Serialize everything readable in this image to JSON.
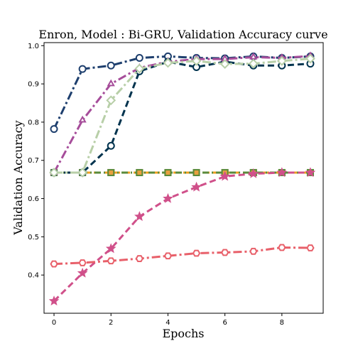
{
  "chart_data": {
    "type": "line",
    "title": "Enron, Model : Bi-GRU, Validation Accuracy curve",
    "xlabel": "Epochs",
    "ylabel": "Validation Accuracy",
    "xlim": [
      -0.35,
      9.45
    ],
    "ylim": [
      0.3,
      1.008
    ],
    "xticks": [
      0,
      2,
      4,
      6,
      8
    ],
    "yticks": [
      0.4,
      0.5,
      0.6,
      0.7,
      0.8,
      0.9,
      1.0
    ],
    "grid": false,
    "x": [
      0,
      1,
      2,
      3,
      4,
      5,
      6,
      7,
      8,
      9
    ],
    "series": [
      {
        "color": "#f0a020",
        "dash": "9,5",
        "marker": "square",
        "markerFill": "#f0a020",
        "markerStroke": "#8a6a20",
        "values": [
          0.668,
          0.668,
          0.668,
          0.668,
          0.668,
          0.668,
          0.668,
          0.668,
          0.668,
          0.668
        ]
      },
      {
        "color": "#5a8a3a",
        "dash": "9,4,2,4",
        "marker": "square",
        "markerFill": "#e8a040",
        "markerStroke": "#5a8a3a",
        "values": [
          0.668,
          0.668,
          0.668,
          0.668,
          0.668,
          0.668,
          0.668,
          0.668,
          0.668,
          0.668
        ]
      },
      {
        "color": "#1e3f6e",
        "dash": "12,4,3,4",
        "marker": "circle",
        "markerFill": "#ffffff",
        "markerStroke": "#1e3f6e",
        "values": [
          0.782,
          0.939,
          0.948,
          0.968,
          0.972,
          0.968,
          0.967,
          0.972,
          0.968,
          0.972
        ]
      },
      {
        "color": "#00334e",
        "dash": "9,5",
        "marker": "circle",
        "markerFill": "#ffffff",
        "markerStroke": "#00334e",
        "values": [
          0.668,
          0.668,
          0.738,
          0.933,
          0.958,
          0.944,
          0.958,
          0.948,
          0.948,
          0.953
        ]
      },
      {
        "color": "#a64d9a",
        "dash": "12,4,3,4",
        "marker": "tri",
        "markerFill": "#ffffff",
        "markerStroke": "#a64d9a",
        "values": [
          0.668,
          0.805,
          0.9,
          0.942,
          0.958,
          0.965,
          0.965,
          0.97,
          0.968,
          0.973
        ]
      },
      {
        "color": "#b8cfa8",
        "dash": "12,4,3,4",
        "marker": "diamond",
        "markerFill": "#ffffff",
        "markerStroke": "#b8cfa8",
        "values": [
          0.668,
          0.668,
          0.857,
          0.94,
          0.955,
          0.96,
          0.952,
          0.953,
          0.96,
          0.966
        ]
      },
      {
        "color": "#d0508a",
        "dash": "9,5",
        "marker": "star",
        "markerFill": "#d0508a",
        "markerStroke": "#d0508a",
        "values": [
          0.332,
          0.405,
          0.469,
          0.553,
          0.6,
          0.63,
          0.658,
          0.665,
          0.668,
          0.668
        ]
      },
      {
        "color": "#e8606a",
        "dash": "12,4,3,4",
        "marker": "hex",
        "markerFill": "#ffffff",
        "markerStroke": "#e8606a",
        "values": [
          0.429,
          0.432,
          0.437,
          0.443,
          0.45,
          0.457,
          0.459,
          0.462,
          0.472,
          0.471
        ]
      }
    ]
  }
}
